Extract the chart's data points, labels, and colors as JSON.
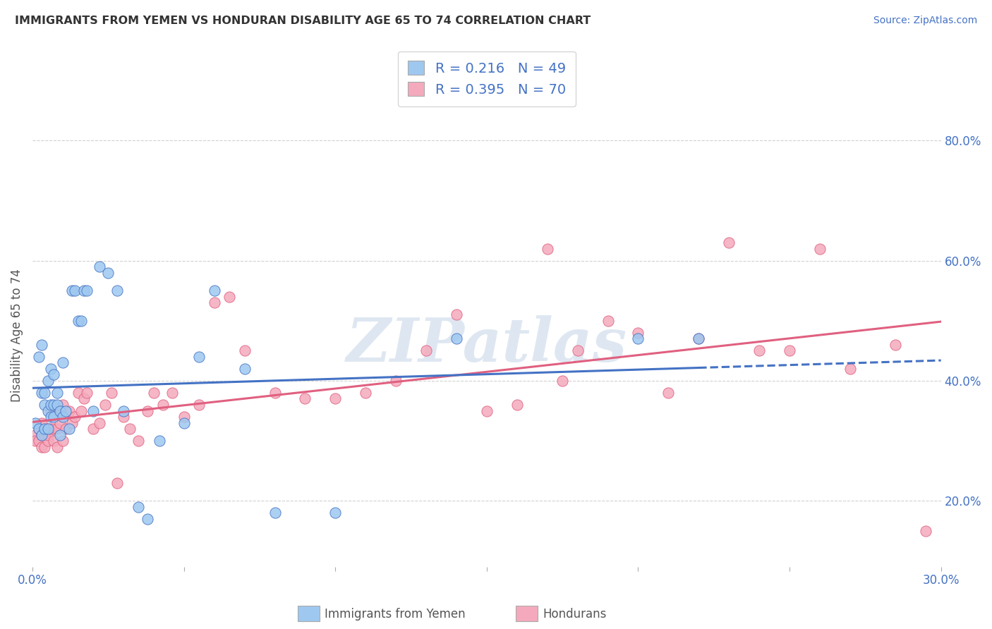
{
  "title": "IMMIGRANTS FROM YEMEN VS HONDURAN DISABILITY AGE 65 TO 74 CORRELATION CHART",
  "source": "Source: ZipAtlas.com",
  "ylabel": "Disability Age 65 to 74",
  "xlim": [
    0.0,
    0.3
  ],
  "ylim": [
    0.09,
    0.86
  ],
  "xtick_positions": [
    0.0,
    0.05,
    0.1,
    0.15,
    0.2,
    0.25,
    0.3
  ],
  "xticklabels": [
    "0.0%",
    "",
    "",
    "",
    "",
    "",
    "30.0%"
  ],
  "ytick_positions": [
    0.2,
    0.4,
    0.6,
    0.8
  ],
  "yticklabels": [
    "20.0%",
    "40.0%",
    "60.0%",
    "80.0%"
  ],
  "R_yemen": 0.216,
  "N_yemen": 49,
  "R_honduras": 0.395,
  "N_honduras": 70,
  "color_yemen": "#9EC8F0",
  "color_honduras": "#F4AABC",
  "line_color_yemen": "#4472C4",
  "line_color_honduras": "#E06080",
  "background_color": "#FFFFFF",
  "grid_color": "#CCCCCC",
  "title_color": "#333333",
  "axis_color": "#4472C4",
  "watermark_text": "ZIPatlas",
  "legend_label_yemen": "Immigrants from Yemen",
  "legend_label_honduras": "Hondurans",
  "scatter_yemen_x": [
    0.001,
    0.002,
    0.002,
    0.003,
    0.003,
    0.003,
    0.004,
    0.004,
    0.004,
    0.005,
    0.005,
    0.005,
    0.006,
    0.006,
    0.006,
    0.007,
    0.007,
    0.007,
    0.008,
    0.008,
    0.009,
    0.009,
    0.01,
    0.01,
    0.011,
    0.012,
    0.013,
    0.014,
    0.015,
    0.016,
    0.017,
    0.018,
    0.02,
    0.022,
    0.025,
    0.028,
    0.03,
    0.035,
    0.038,
    0.042,
    0.05,
    0.055,
    0.06,
    0.07,
    0.08,
    0.1,
    0.14,
    0.2,
    0.22
  ],
  "scatter_yemen_y": [
    0.33,
    0.32,
    0.44,
    0.31,
    0.38,
    0.46,
    0.32,
    0.36,
    0.38,
    0.32,
    0.35,
    0.4,
    0.34,
    0.36,
    0.42,
    0.34,
    0.36,
    0.41,
    0.36,
    0.38,
    0.31,
    0.35,
    0.34,
    0.43,
    0.35,
    0.32,
    0.55,
    0.55,
    0.5,
    0.5,
    0.55,
    0.55,
    0.35,
    0.59,
    0.58,
    0.55,
    0.35,
    0.19,
    0.17,
    0.3,
    0.33,
    0.44,
    0.55,
    0.42,
    0.18,
    0.18,
    0.47,
    0.47,
    0.47
  ],
  "scatter_honduras_x": [
    0.001,
    0.001,
    0.002,
    0.002,
    0.003,
    0.003,
    0.003,
    0.004,
    0.004,
    0.005,
    0.005,
    0.005,
    0.006,
    0.006,
    0.007,
    0.007,
    0.008,
    0.008,
    0.009,
    0.009,
    0.01,
    0.01,
    0.011,
    0.012,
    0.013,
    0.014,
    0.015,
    0.016,
    0.017,
    0.018,
    0.02,
    0.022,
    0.024,
    0.026,
    0.028,
    0.03,
    0.032,
    0.035,
    0.038,
    0.04,
    0.043,
    0.046,
    0.05,
    0.055,
    0.06,
    0.065,
    0.07,
    0.08,
    0.09,
    0.1,
    0.11,
    0.12,
    0.13,
    0.14,
    0.15,
    0.16,
    0.17,
    0.175,
    0.18,
    0.19,
    0.2,
    0.21,
    0.22,
    0.23,
    0.24,
    0.25,
    0.26,
    0.27,
    0.285,
    0.295
  ],
  "scatter_honduras_y": [
    0.31,
    0.3,
    0.32,
    0.3,
    0.31,
    0.29,
    0.33,
    0.31,
    0.29,
    0.32,
    0.3,
    0.31,
    0.32,
    0.35,
    0.3,
    0.32,
    0.29,
    0.32,
    0.33,
    0.35,
    0.3,
    0.36,
    0.32,
    0.35,
    0.33,
    0.34,
    0.38,
    0.35,
    0.37,
    0.38,
    0.32,
    0.33,
    0.36,
    0.38,
    0.23,
    0.34,
    0.32,
    0.3,
    0.35,
    0.38,
    0.36,
    0.38,
    0.34,
    0.36,
    0.53,
    0.54,
    0.45,
    0.38,
    0.37,
    0.37,
    0.38,
    0.4,
    0.45,
    0.51,
    0.35,
    0.36,
    0.62,
    0.4,
    0.45,
    0.5,
    0.48,
    0.38,
    0.47,
    0.63,
    0.45,
    0.45,
    0.62,
    0.42,
    0.46,
    0.15
  ]
}
